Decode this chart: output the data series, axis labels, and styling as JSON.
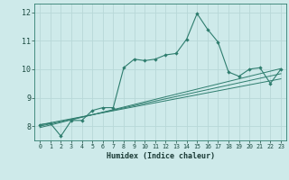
{
  "xlabel": "Humidex (Indice chaleur)",
  "background_color": "#ceeaea",
  "grid_color": "#b8d8d8",
  "line_color": "#2e7d6e",
  "xlim": [
    -0.5,
    23.5
  ],
  "ylim": [
    7.5,
    12.3
  ],
  "yticks": [
    8,
    9,
    10,
    11,
    12
  ],
  "xticks": [
    0,
    1,
    2,
    3,
    4,
    5,
    6,
    7,
    8,
    9,
    10,
    11,
    12,
    13,
    14,
    15,
    16,
    17,
    18,
    19,
    20,
    21,
    22,
    23
  ],
  "series_main": [
    8.05,
    8.1,
    7.65,
    8.2,
    8.2,
    8.55,
    8.65,
    8.65,
    10.05,
    10.35,
    10.3,
    10.35,
    10.5,
    10.55,
    11.05,
    11.95,
    11.4,
    10.95,
    9.9,
    9.75,
    10.0,
    10.05,
    9.5,
    10.0
  ],
  "series_lin1": [
    8.05,
    8.12,
    8.19,
    8.26,
    8.33,
    8.4,
    8.47,
    8.54,
    8.61,
    8.68,
    8.75,
    8.82,
    8.89,
    8.96,
    9.03,
    9.1,
    9.17,
    9.24,
    9.31,
    9.38,
    9.45,
    9.52,
    9.59,
    9.66
  ],
  "series_lin2": [
    8.0,
    8.08,
    8.16,
    8.24,
    8.32,
    8.4,
    8.48,
    8.56,
    8.64,
    8.72,
    8.8,
    8.88,
    8.96,
    9.04,
    9.12,
    9.2,
    9.28,
    9.36,
    9.44,
    9.52,
    9.6,
    9.68,
    9.76,
    9.84
  ],
  "series_lin3": [
    7.95,
    8.04,
    8.13,
    8.22,
    8.31,
    8.4,
    8.49,
    8.58,
    8.67,
    8.76,
    8.85,
    8.94,
    9.03,
    9.12,
    9.21,
    9.3,
    9.39,
    9.48,
    9.57,
    9.66,
    9.75,
    9.84,
    9.93,
    10.02
  ]
}
